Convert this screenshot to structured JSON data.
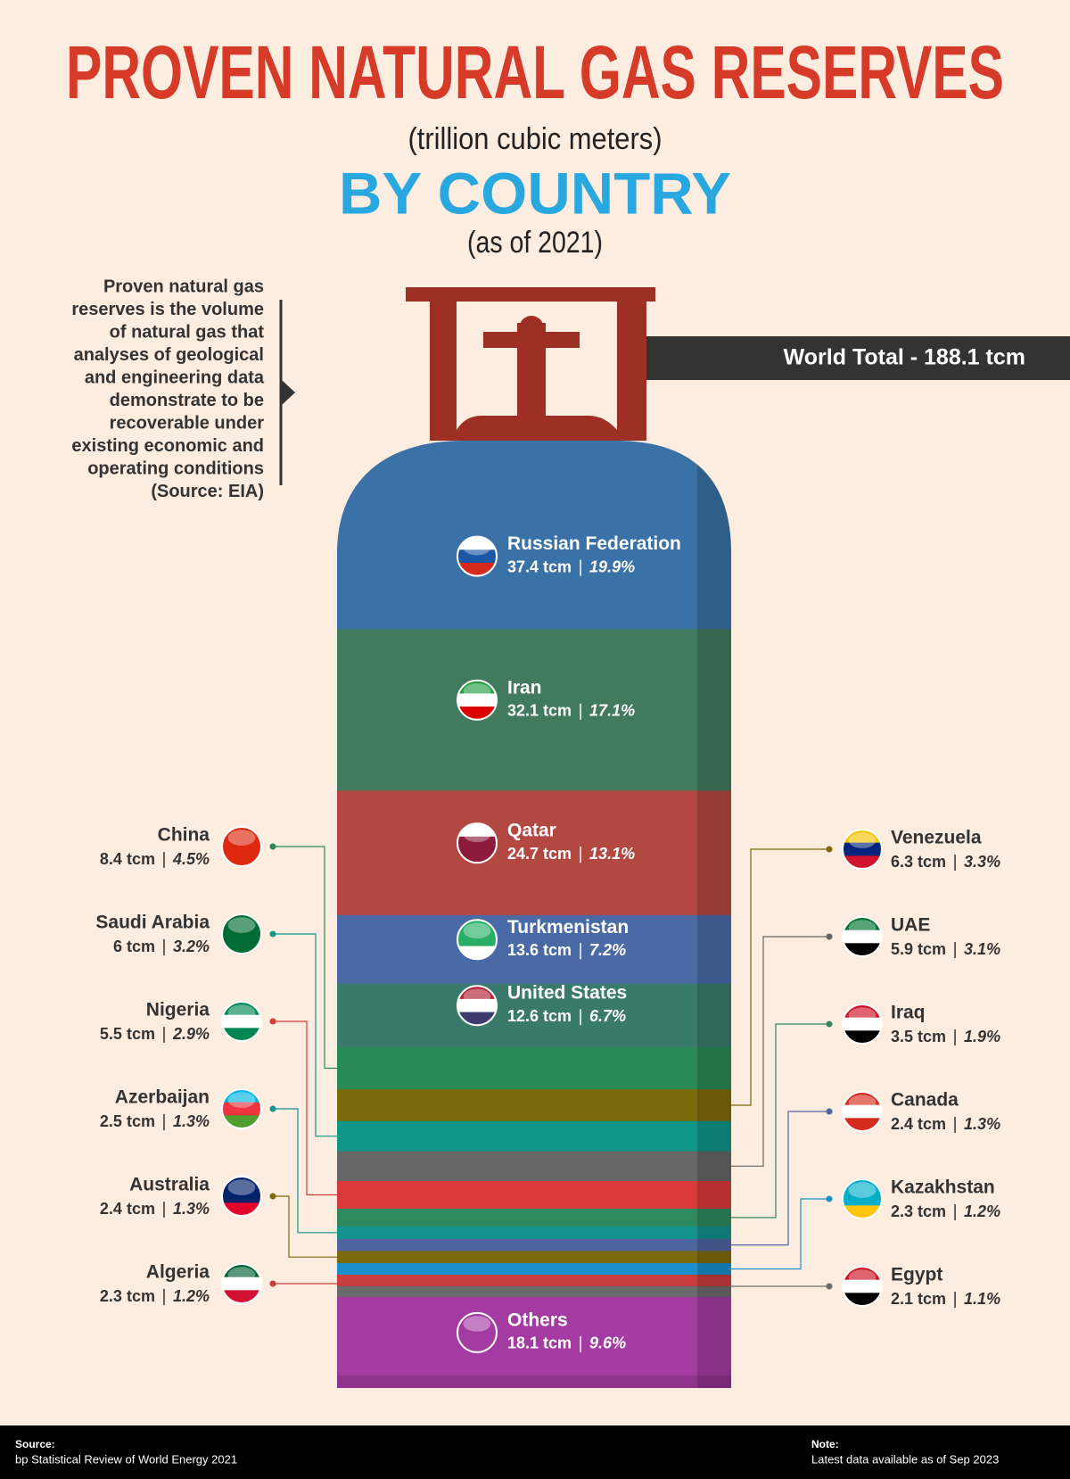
{
  "chart_data": {
    "type": "stacked-cylinder",
    "title": "PROVEN NATURAL GAS RESERVES",
    "subtitle": "(trillion cubic meters)",
    "heading": "BY COUNTRY",
    "date_note": "(as of 2021)",
    "description": [
      "Proven natural gas",
      "reserves is the volume",
      "of natural gas that",
      "analyses of geological",
      "and engineering data",
      "demonstrate to be",
      "recoverable under",
      "existing economic and",
      "operating conditions",
      "(Source: EIA)"
    ],
    "total_label": "World Total - 188.1 tcm",
    "categories": [
      "Russian Federation",
      "Iran",
      "Qatar",
      "Turkmenistan",
      "United States",
      "China",
      "Venezuela",
      "Saudi Arabia",
      "UAE",
      "Nigeria",
      "Iraq",
      "Azerbaijan",
      "Canada",
      "Australia",
      "Kazakhstan",
      "Algeria",
      "Egypt",
      "Others"
    ],
    "values": [
      37.4,
      32.1,
      24.7,
      13.6,
      12.6,
      8.4,
      6.3,
      6,
      5.9,
      5.5,
      3.5,
      2.5,
      2.4,
      2.4,
      2.3,
      2.3,
      2.1,
      18.1
    ],
    "value_labels": [
      "37.4 tcm",
      "32.1 tcm",
      "24.7 tcm",
      "13.6 tcm",
      "12.6 tcm",
      "8.4 tcm",
      "6.3 tcm",
      "6 tcm",
      "5.9 tcm",
      "5.5 tcm",
      "3.5 tcm",
      "2.5 tcm",
      "2.4 tcm",
      "2.4 tcm",
      "2.3 tcm",
      "2.3 tcm",
      "2.1 tcm",
      "18.1 tcm"
    ],
    "shares": [
      19.9,
      17.1,
      13.1,
      7.2,
      6.7,
      4.5,
      3.3,
      3.2,
      3.1,
      2.9,
      1.9,
      1.3,
      1.3,
      1.3,
      1.2,
      1.2,
      1.1,
      9.6
    ],
    "share_labels": [
      "19.9%",
      "17.1%",
      "13.1%",
      "7.2%",
      "6.7%",
      "4.5%",
      "3.3%",
      "3.2%",
      "3.1%",
      "2.9%",
      "1.9%",
      "1.3%",
      "1.3%",
      "1.3%",
      "1.2%",
      "1.2%",
      "1.1%",
      "9.6%"
    ],
    "colors": [
      "#3a72a8",
      "#427a5d",
      "#b34842",
      "#4a6aa6",
      "#3a7a6c",
      "#2a8a55",
      "#7d6a0a",
      "#0f9688",
      "#666666",
      "#d9393a",
      "#2e8a5e",
      "#14928e",
      "#4f64a0",
      "#7d6a0a",
      "#1a8fcc",
      "#c83d3d",
      "#6b6b6b",
      "#a43ba3"
    ],
    "source_heading": "Source:",
    "source": "bp Statistical Review of World Energy 2021",
    "note_heading": "Note:",
    "note": "Latest data available as of Sep 2023"
  }
}
